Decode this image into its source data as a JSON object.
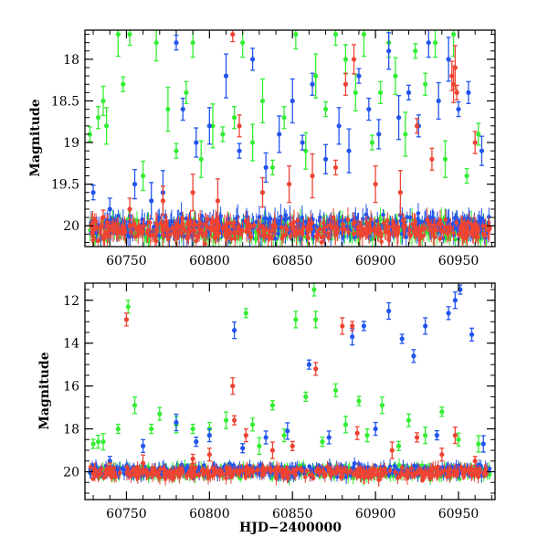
{
  "chart_data": [
    {
      "type": "scatter",
      "panel": "top",
      "title": "",
      "xlabel": "",
      "ylabel": "Magnitude",
      "xlim": [
        60725,
        60972
      ],
      "ylim": [
        20.25,
        17.65
      ],
      "y_inverted": true,
      "x_ticks": [
        60750,
        60800,
        60850,
        60900,
        60950
      ],
      "x_tick_labels": [
        "60750",
        "60800",
        "60850",
        "60900",
        "60950"
      ],
      "y_ticks": [
        18,
        18.5,
        19,
        19.5,
        20
      ],
      "y_tick_labels": [
        "18",
        "18.5",
        "19",
        "19.5",
        "20"
      ],
      "grid": false,
      "legend": "none",
      "series": [
        {
          "color": "#33ee33",
          "error_bars": true,
          "baseline": 20.05,
          "x": [
            60728,
            60733,
            60736,
            60738,
            60745,
            60748,
            60752,
            60760,
            60768,
            60775,
            60780,
            60786,
            60790,
            60795,
            60802,
            60808,
            60815,
            60820,
            60826,
            60832,
            60838,
            60845,
            60852,
            60858,
            60864,
            60870,
            60876,
            60882,
            60888,
            60893,
            60898,
            60903,
            60908,
            60912,
            60918,
            60924,
            60930,
            60936,
            60942,
            60947,
            60955,
            60962
          ],
          "y": [
            18.9,
            18.7,
            18.5,
            18.8,
            17.7,
            18.3,
            17.7,
            19.4,
            17.8,
            18.6,
            19.1,
            18.4,
            17.8,
            19.2,
            18.8,
            18.9,
            18.7,
            17.8,
            19.0,
            18.5,
            19.3,
            18.7,
            17.7,
            19.1,
            18.2,
            18.6,
            17.7,
            18.0,
            18.4,
            17.7,
            19.0,
            18.4,
            17.8,
            18.2,
            18.9,
            17.9,
            18.3,
            17.8,
            19.2,
            17.7,
            19.4,
            18.9
          ]
        },
        {
          "color": "#2255ee",
          "error_bars": true,
          "baseline": 20.0,
          "x": [
            60730,
            60740,
            60755,
            60765,
            60772,
            60780,
            60784,
            60792,
            60800,
            60810,
            60818,
            60826,
            60834,
            60842,
            60850,
            60856,
            60862,
            60870,
            60878,
            60884,
            60890,
            60896,
            60902,
            60908,
            60914,
            60920,
            60926,
            60932,
            60938,
            60944,
            60950,
            60956,
            60964
          ],
          "y": [
            19.6,
            19.8,
            19.5,
            19.7,
            19.6,
            17.8,
            18.6,
            19.0,
            18.8,
            18.2,
            19.1,
            18.0,
            19.3,
            18.9,
            18.5,
            19.0,
            18.3,
            19.2,
            18.8,
            19.1,
            18.2,
            18.6,
            18.9,
            17.9,
            18.7,
            18.4,
            18.8,
            17.8,
            18.5,
            18.0,
            18.6,
            18.4,
            19.1
          ]
        },
        {
          "color": "#ee4433",
          "error_bars": true,
          "baseline": 20.05,
          "x": [
            60736,
            60752,
            60772,
            60790,
            60805,
            60814,
            60818,
            60832,
            60848,
            60862,
            60876,
            60882,
            60887,
            60900,
            60915,
            60925,
            60934,
            60946,
            60947,
            60948,
            60949,
            60960
          ],
          "y": [
            19.9,
            19.8,
            19.7,
            19.6,
            19.7,
            17.7,
            18.8,
            19.6,
            19.5,
            19.4,
            19.3,
            18.3,
            18.0,
            19.5,
            19.6,
            18.8,
            19.2,
            18.2,
            18.3,
            18.1,
            18.4,
            19.0
          ]
        }
      ]
    },
    {
      "type": "scatter",
      "panel": "bottom",
      "title": "",
      "xlabel": "HJD−2400000",
      "ylabel": "Magnitude",
      "xlim": [
        60725,
        60972
      ],
      "ylim": [
        21.3,
        11.2
      ],
      "y_inverted": true,
      "x_ticks": [
        60750,
        60800,
        60850,
        60900,
        60950
      ],
      "x_tick_labels": [
        "60750",
        "60800",
        "60850",
        "60900",
        "60950"
      ],
      "y_ticks": [
        12,
        14,
        16,
        18,
        20
      ],
      "y_tick_labels": [
        "12",
        "14",
        "16",
        "18",
        "20"
      ],
      "grid": false,
      "legend": "none",
      "series": [
        {
          "color": "#33ee33",
          "error_bars": true,
          "baseline": 20.0,
          "x": [
            60730,
            60733,
            60736,
            60745,
            60751,
            60755,
            60765,
            60770,
            60780,
            60790,
            60800,
            60810,
            60822,
            60826,
            60830,
            60838,
            60845,
            60852,
            60858,
            60863,
            60864,
            60868,
            60876,
            60882,
            60890,
            60895,
            60904,
            60914,
            60920,
            60930,
            60940,
            60950,
            60962
          ],
          "y": [
            18.7,
            18.6,
            18.6,
            18.0,
            12.3,
            16.9,
            18.0,
            17.3,
            17.8,
            18.0,
            18.0,
            17.6,
            12.6,
            17.8,
            18.8,
            16.9,
            18.3,
            12.9,
            16.5,
            11.5,
            12.9,
            18.6,
            16.2,
            17.8,
            16.7,
            18.3,
            16.9,
            18.8,
            17.6,
            18.3,
            17.2,
            18.5,
            18.7
          ]
        },
        {
          "color": "#2255ee",
          "error_bars": true,
          "baseline": 19.95,
          "x": [
            60740,
            60760,
            60780,
            60792,
            60800,
            60815,
            60820,
            60834,
            60847,
            60860,
            60872,
            60886,
            60893,
            60900,
            60908,
            60916,
            60923,
            60930,
            60937,
            60944,
            60948,
            60951,
            60958,
            60965
          ],
          "y": [
            19.5,
            18.8,
            17.7,
            18.6,
            18.3,
            13.4,
            18.9,
            18.4,
            18.1,
            15.0,
            18.4,
            13.7,
            13.2,
            18.0,
            12.5,
            13.8,
            14.6,
            13.2,
            18.3,
            12.6,
            12.0,
            11.5,
            13.6,
            18.7
          ]
        },
        {
          "color": "#ee4433",
          "error_bars": true,
          "baseline": 20.05,
          "x": [
            60740,
            60750,
            60760,
            60790,
            60800,
            60814,
            60815,
            60822,
            60838,
            60850,
            60864,
            60880,
            60886,
            60889,
            60910,
            60925,
            60940,
            60948,
            60960
          ],
          "y": [
            19.8,
            12.9,
            19.6,
            19.4,
            19.2,
            16.0,
            17.6,
            18.3,
            19.0,
            18.8,
            15.2,
            13.2,
            13.2,
            18.2,
            19.0,
            18.4,
            19.2,
            18.3,
            19.5
          ]
        }
      ]
    }
  ]
}
